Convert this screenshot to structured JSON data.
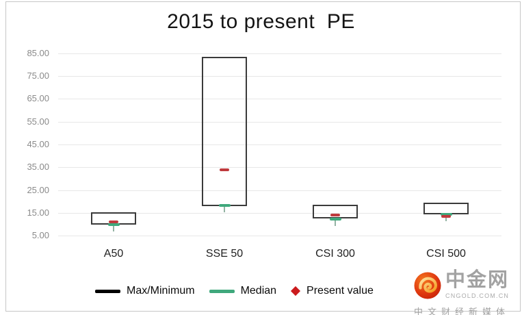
{
  "chart_data": {
    "type": "boxplot",
    "title": "2015 to present  PE",
    "categories": [
      "A50",
      "SSE 50",
      "CSI 300",
      "CSI 500"
    ],
    "series": [
      {
        "name": "A50",
        "max": 15.4,
        "min": 10.0,
        "median": 10.0,
        "present": 11.2
      },
      {
        "name": "SSE 50",
        "max": 83.4,
        "min": 18.0,
        "median": 18.2,
        "present": 33.8
      },
      {
        "name": "CSI 300",
        "max": 18.6,
        "min": 12.6,
        "median": 12.2,
        "present": 14.2
      },
      {
        "name": "CSI 500",
        "max": 19.5,
        "min": 14.4,
        "median": 14.4,
        "present": 13.6
      }
    ],
    "y_ticks": [
      85,
      75,
      65,
      55,
      45,
      35,
      25,
      15,
      5
    ],
    "y_tick_labels": [
      "85.00",
      "75.00",
      "65.00",
      "55.00",
      "45.00",
      "35.00",
      "25.00",
      "15.00",
      "5.00"
    ],
    "ylim": [
      5,
      87
    ],
    "grid": true,
    "legend_position": "bottom",
    "legend": [
      {
        "label": "Max/Minimum",
        "marker": "line",
        "color": "#000000"
      },
      {
        "label": "Median",
        "marker": "line",
        "color": "#3fa87c"
      },
      {
        "label": "Present value",
        "marker": "diamond",
        "color": "#cb1b1d"
      }
    ],
    "colors": {
      "box_border": "#3a3a3a",
      "median": "#3fa87c",
      "median_stub": "#93b3a3",
      "present": "#bf3a3d",
      "gridline": "#e7e7e7",
      "y_tick_text": "#8a8a8a",
      "x_tick_text": "#1f1f1f"
    }
  },
  "watermark": {
    "brand": "中金网",
    "domain": "CNGOLD.COM.CN",
    "tagline": "中文财经新媒体",
    "icon": "cngold-swirl-icon"
  }
}
